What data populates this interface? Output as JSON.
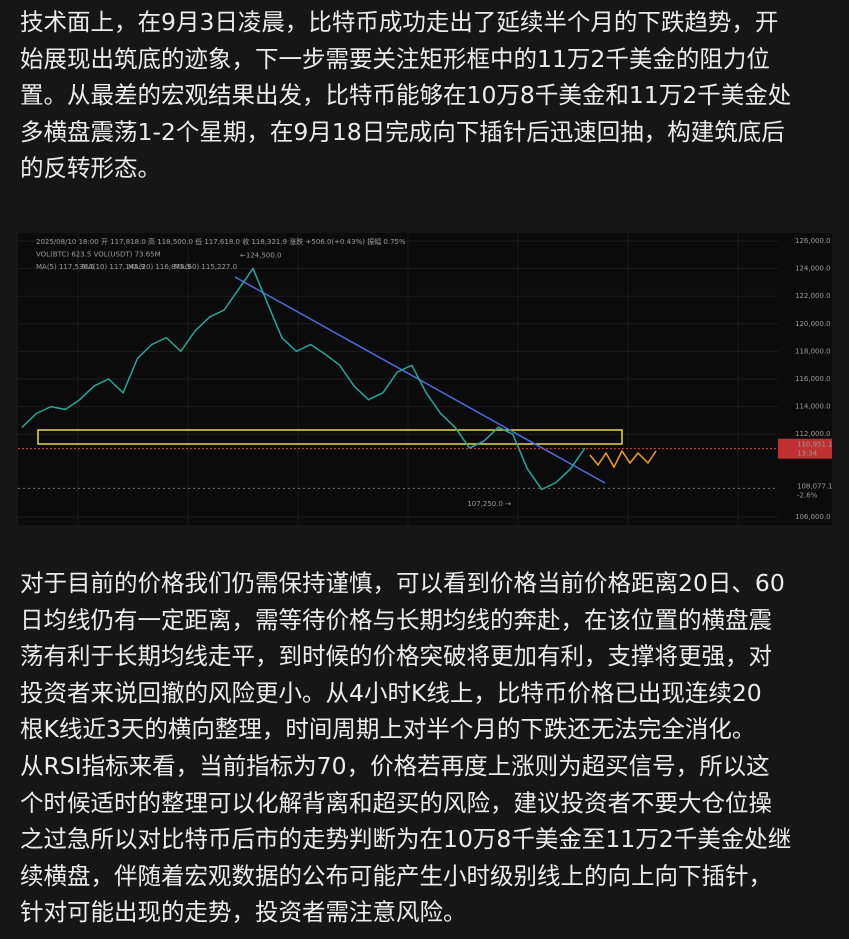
{
  "paragraphs": [
    {
      "lines": [
        "技术面上，在9月3日凌晨，比特币成功走出了延续半个月的下跌趋势，开",
        "始展现出筑底的迹象，下一步需要关注矩形框中的11万2千美金的阻力位",
        "置。从最差的宏观结果出发，比特币能够在10万8千美金和11万2千美金处",
        "多横盘震荡1-2个星期，在9月18日完成向下插针后迅速回抽，构建筑底后",
        "的反转形态。"
      ]
    },
    {
      "lines": [
        "对于目前的价格我们仍需保持谨慎，可以看到价格当前价格距离20日、60",
        "日均线仍有一定距离，需等待价格与长期均线的奔赴，在该位置的横盘震",
        "荡有利于长期均线走平，到时候的价格突破将更加有利，支撑将更强，对",
        "投资者来说回撤的风险更小。从4小时K线上，比特币价格已出现连续20",
        "根K线近3天的横向整理，时间周期上对半个月的下跌还无法完全消化。",
        "从RSI指标来看，当前指标为70，价格若再度上涨则为超买信号，所以这",
        "个时候适时的整理可以化解背离和超买的风险，建议投资者不要大仓位操",
        "之过急所以对比特币后市的走势判断为在10万8千美金至11万2千美金处继",
        "续横盘，伴随着宏观数据的公布可能产生小时级别线上的向上向下插针，",
        "针对可能出现的走势，投资者需注意风险。"
      ]
    }
  ],
  "chart": {
    "header": [
      "2025/08/10 18:00  开 117,818.0  高 118,500.0  低 117,618.0  收 118,321.9  涨跌 +506.0(+0.43%)  振幅 0.75%",
      "VOL(BTC) 623.5  VOL(USDT) 73.65M"
    ],
    "ma_labels": [
      {
        "text": "MA(5) 117,530.5",
        "color": "#f0a030"
      },
      {
        "text": "MA(10) 117,145.9",
        "color": "#e060a0"
      },
      {
        "text": "MA(20) 116,875.5",
        "color": "#40c0e0"
      },
      {
        "text": "MA(60) 115,227.0",
        "color": "#a070e0"
      }
    ],
    "ylim": [
      106000,
      126000
    ],
    "yticks": [
      {
        "value": 126000,
        "label": "126,000.0"
      },
      {
        "value": 124000,
        "label": "124,000.0"
      },
      {
        "value": 122000,
        "label": "122,000.0"
      },
      {
        "value": 120000,
        "label": "120,000.0"
      },
      {
        "value": 118000,
        "label": "118,000.0"
      },
      {
        "value": 116000,
        "label": "116,000.0"
      },
      {
        "value": 114000,
        "label": "114,000.0"
      },
      {
        "value": 112000,
        "label": "112,000.0"
      },
      {
        "value": 106000,
        "label": "106,000.0"
      }
    ],
    "price": {
      "color": "#26a69a",
      "values": [
        112500,
        113500,
        114000,
        113800,
        114500,
        115500,
        116000,
        115000,
        117500,
        118500,
        119000,
        118000,
        119500,
        120500,
        121000,
        122500,
        124000,
        121500,
        119000,
        118000,
        118500,
        117800,
        117000,
        115500,
        114500,
        115000,
        116500,
        117000,
        115000,
        113500,
        112500,
        111000,
        111500,
        112500,
        112000,
        109500,
        108000,
        108500,
        109500,
        111000
      ]
    },
    "high_label": {
      "value": 124500,
      "label": "←124,500.0"
    },
    "low_label": {
      "value": 107250,
      "label": "107,250.0 →"
    },
    "last_price": {
      "value": 110951.1,
      "label": "110,951.1",
      "time": "13:34"
    },
    "ref_price": {
      "value": 108077.1,
      "label": "108,077.1",
      "change": "-2.6%"
    }
  }
}
